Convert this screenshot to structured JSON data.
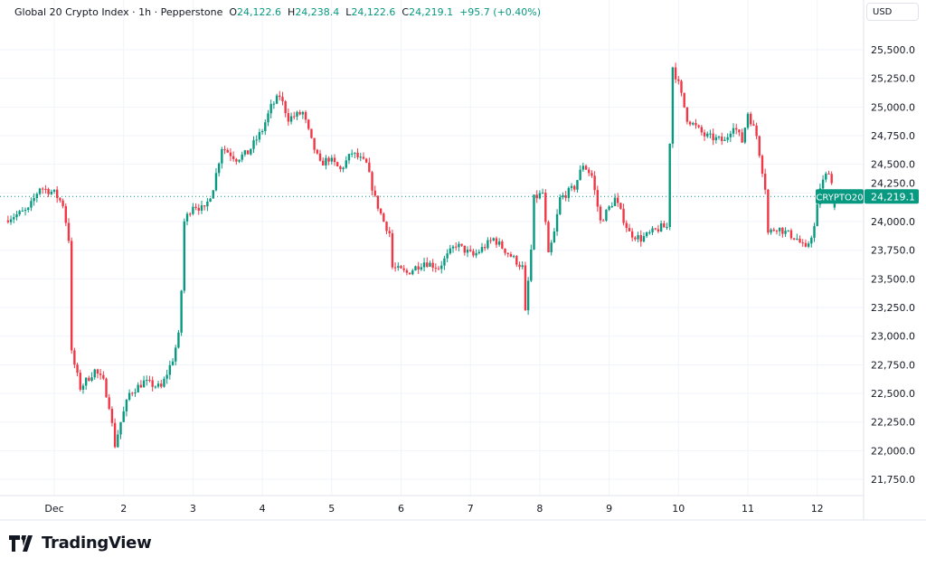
{
  "header": {
    "symbol": "Global 20 Crypto Index",
    "interval": "1h",
    "source": "Pepperstone",
    "o_label": "O",
    "o": "24,122.6",
    "h_label": "H",
    "h": "24,238.4",
    "l_label": "L",
    "l": "24,122.6",
    "c_label": "C",
    "c": "24,219.1",
    "change": "+95.7 (+0.40%)"
  },
  "currency": "USD",
  "logo": "TradingView",
  "colors": {
    "up": "#089981",
    "down": "#F23645",
    "grid": "#f0f3fa",
    "text": "#131722"
  },
  "chart_data": {
    "type": "candlestick",
    "interval": "1h",
    "ylim": [
      21600,
      25650
    ],
    "y_ticks": [
      "21,750.0",
      "22,000.0",
      "22,250.0",
      "22,500.0",
      "22,750.0",
      "23,000.0",
      "23,250.0",
      "23,500.0",
      "23,750.0",
      "24,000.0",
      "24,250.0",
      "24,500.0",
      "24,750.0",
      "25,000.0",
      "25,250.0",
      "25,500.0"
    ],
    "y_tick_values": [
      21750,
      22000,
      22250,
      22500,
      22750,
      23000,
      23250,
      23500,
      23750,
      24000,
      24250,
      24500,
      24750,
      25000,
      25250,
      25500
    ],
    "x_ticks": [
      "Dec",
      "2",
      "3",
      "4",
      "5",
      "6",
      "7",
      "8",
      "9",
      "10",
      "11",
      "12"
    ],
    "last_price": {
      "symbol": "CRYPTO20",
      "value": 24219.1,
      "label": "24,219.1"
    },
    "close_path": [
      [
        "Nov 30 08:00",
        24030
      ],
      [
        "Nov 30 15:00",
        24100
      ],
      [
        "Nov 30 19:00",
        24300
      ],
      [
        "Dec 1 00:00",
        24250
      ],
      [
        "Dec 1 03:00",
        24150
      ],
      [
        "Dec 1 05:00",
        23850
      ],
      [
        "Dec 1 06:00",
        22850
      ],
      [
        "Dec 1 09:00",
        22550
      ],
      [
        "Dec 1 14:00",
        22700
      ],
      [
        "Dec 1 17:00",
        22600
      ],
      [
        "Dec 1 19:00",
        22400
      ],
      [
        "Dec 1 21:00",
        22050
      ],
      [
        "Dec 1 23:00",
        22250
      ],
      [
        "Dec 2 02:00",
        22500
      ],
      [
        "Dec 2 07:00",
        22600
      ],
      [
        "Dec 2 13:00",
        22550
      ],
      [
        "Dec 2 17:00",
        22800
      ],
      [
        "Dec 2 19:00",
        23000
      ],
      [
        "Dec 2 20:00",
        23400
      ],
      [
        "Dec 2 21:00",
        24000
      ],
      [
        "Dec 3 00:00",
        24150
      ],
      [
        "Dec 3 04:00",
        24100
      ],
      [
        "Dec 3 07:00",
        24300
      ],
      [
        "Dec 3 10:00",
        24650
      ],
      [
        "Dec 3 15:00",
        24550
      ],
      [
        "Dec 3 19:00",
        24600
      ],
      [
        "Dec 4 00:00",
        24800
      ],
      [
        "Dec 4 03:00",
        25000
      ],
      [
        "Dec 4 06:00",
        25100
      ],
      [
        "Dec 4 09:00",
        24900
      ],
      [
        "Dec 4 14:00",
        24950
      ],
      [
        "Dec 4 17:00",
        24700
      ],
      [
        "Dec 4 20:00",
        24500
      ],
      [
        "Dec 4 23:00",
        24550
      ],
      [
        "Dec 5 03:00",
        24450
      ],
      [
        "Dec 5 07:00",
        24600
      ],
      [
        "Dec 5 12:00",
        24500
      ],
      [
        "Dec 5 15:00",
        24200
      ],
      [
        "Dec 5 18:00",
        24000
      ],
      [
        "Dec 5 20:00",
        23900
      ],
      [
        "Dec 5 21:00",
        23600
      ],
      [
        "Dec 6 02:00",
        23550
      ],
      [
        "Dec 6 08:00",
        23650
      ],
      [
        "Dec 6 13:00",
        23600
      ],
      [
        "Dec 6 19:00",
        23800
      ],
      [
        "Dec 7 01:00",
        23700
      ],
      [
        "Dec 7 08:00",
        23850
      ],
      [
        "Dec 7 14:00",
        23700
      ],
      [
        "Dec 7 18:00",
        23600
      ],
      [
        "Dec 7 19:00",
        23200
      ],
      [
        "Dec 7 21:00",
        23750
      ],
      [
        "Dec 7 22:00",
        24200
      ],
      [
        "Dec 8 01:00",
        24250
      ],
      [
        "Dec 8 03:00",
        23700
      ],
      [
        "Dec 8 05:00",
        23900
      ],
      [
        "Dec 8 07:00",
        24200
      ],
      [
        "Dec 8 12:00",
        24300
      ],
      [
        "Dec 8 15:00",
        24500
      ],
      [
        "Dec 8 18:00",
        24400
      ],
      [
        "Dec 8 21:00",
        24000
      ],
      [
        "Dec 9 02:00",
        24200
      ],
      [
        "Dec 9 07:00",
        23900
      ],
      [
        "Dec 9 11:00",
        23850
      ],
      [
        "Dec 9 18:00",
        23950
      ],
      [
        "Dec 9 20:00",
        23950
      ],
      [
        "Dec 9 21:00",
        24700
      ],
      [
        "Dec 9 22:00",
        25350
      ],
      [
        "Dec 10 00:00",
        25200
      ],
      [
        "Dec 10 03:00",
        24900
      ],
      [
        "Dec 10 09:00",
        24750
      ],
      [
        "Dec 10 16:00",
        24700
      ],
      [
        "Dec 10 19:00",
        24850
      ],
      [
        "Dec 10 22:00",
        24700
      ],
      [
        "Dec 11 00:00",
        24950
      ],
      [
        "Dec 11 03:00",
        24750
      ],
      [
        "Dec 11 06:00",
        24300
      ],
      [
        "Dec 11 07:00",
        23900
      ],
      [
        "Dec 11 10:00",
        23950
      ],
      [
        "Dec 11 17:00",
        23850
      ],
      [
        "Dec 11 20:00",
        23750
      ],
      [
        "Dec 11 23:00",
        23950
      ],
      [
        "Dec 12 01:00",
        24300
      ],
      [
        "Dec 12 04:00",
        24450
      ],
      [
        "Dec 12 06:00",
        24219.1
      ]
    ]
  }
}
